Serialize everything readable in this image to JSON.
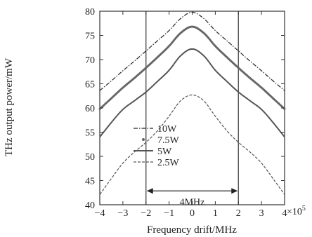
{
  "chart_data": {
    "type": "line",
    "title": "",
    "xlabel": "Frequency drift/MHz",
    "ylabel": "THz output power/mW",
    "x_multiplier_label": "×10",
    "x_multiplier_exponent": "5",
    "xlim": [
      -4,
      4
    ],
    "ylim": [
      40,
      80
    ],
    "x_ticks": [
      -4,
      -3,
      -2,
      -1,
      0,
      1,
      2,
      3,
      4
    ],
    "y_ticks": [
      40,
      45,
      50,
      55,
      60,
      65,
      70,
      75,
      80
    ],
    "x_tick_labels": [
      "−4",
      "−3",
      "−2",
      "−1",
      "0",
      "1",
      "2",
      "3",
      "4"
    ],
    "y_tick_labels": [
      "40",
      "45",
      "50",
      "55",
      "60",
      "65",
      "70",
      "75",
      "80"
    ],
    "grid": false,
    "legend_position": "center",
    "x": [
      -4,
      -3.5,
      -3,
      -2.5,
      -2,
      -1.5,
      -1,
      -0.5,
      0,
      0.5,
      1,
      1.5,
      2,
      2.5,
      3,
      3.5,
      4
    ],
    "series": [
      {
        "name": "10W",
        "style": "dashdot",
        "color": "#222222",
        "values": [
          63.6,
          65.6,
          67.7,
          69.7,
          71.8,
          73.9,
          76.0,
          78.5,
          79.8,
          78.5,
          76.0,
          73.9,
          71.8,
          69.7,
          67.7,
          65.6,
          63.6
        ]
      },
      {
        "name": "7.5W",
        "style": "dotted",
        "color": "#666666",
        "values": [
          59.8,
          62.0,
          64.2,
          66.2,
          68.3,
          70.5,
          72.8,
          75.5,
          76.8,
          75.5,
          72.8,
          70.5,
          68.3,
          66.2,
          64.2,
          62.0,
          59.8
        ]
      },
      {
        "name": "5W",
        "style": "solid",
        "color": "#555555",
        "values": [
          54.0,
          57.0,
          59.7,
          61.5,
          63.3,
          65.5,
          67.8,
          70.8,
          72.2,
          70.8,
          67.8,
          65.5,
          63.3,
          61.5,
          59.7,
          57.0,
          54.0
        ]
      },
      {
        "name": "2.5W",
        "style": "dashed",
        "color": "#555555",
        "values": [
          42.1,
          45.4,
          48.6,
          50.9,
          52.9,
          55.3,
          58.3,
          61.5,
          62.7,
          61.5,
          58.3,
          55.3,
          52.9,
          50.9,
          48.6,
          45.4,
          42.1
        ]
      }
    ],
    "vertical_lines": [
      -2,
      2
    ],
    "annotation": {
      "text": "4MHz",
      "from_x": -2,
      "to_x": 2,
      "y": 44.6
    }
  }
}
